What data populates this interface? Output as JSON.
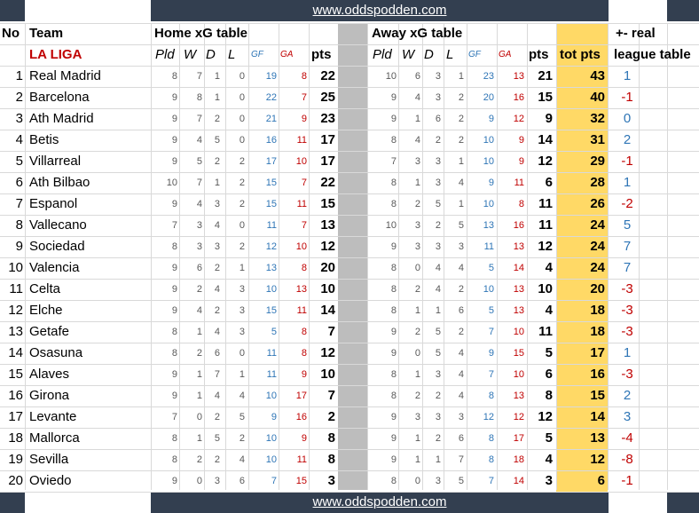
{
  "site_url": "www.oddspodden.com",
  "headers": {
    "no": "No",
    "team": "Team",
    "home": "Home xG table",
    "away": "Away xG table",
    "diff": "+- real",
    "diff2": "league table",
    "league": "LA LIGA",
    "pld": "Pld",
    "w": "W",
    "d": "D",
    "l": "L",
    "gf": "GF",
    "ga": "GA",
    "pts": "pts",
    "tot": "tot pts"
  },
  "colors": {
    "band": "#333f50",
    "tot_highlight": "#ffd966",
    "positive": "#2e75b6",
    "negative": "#c00000"
  },
  "rows": [
    {
      "rank": "1",
      "team": "Real Madrid",
      "h": [
        "8",
        "7",
        "1",
        "0",
        "19",
        "8",
        "22"
      ],
      "a": [
        "10",
        "6",
        "3",
        "1",
        "23",
        "13",
        "21"
      ],
      "tot": "43",
      "diff": "1"
    },
    {
      "rank": "2",
      "team": "Barcelona",
      "h": [
        "9",
        "8",
        "1",
        "0",
        "22",
        "7",
        "25"
      ],
      "a": [
        "9",
        "4",
        "3",
        "2",
        "20",
        "16",
        "15"
      ],
      "tot": "40",
      "diff": "-1"
    },
    {
      "rank": "3",
      "team": "Ath Madrid",
      "h": [
        "9",
        "7",
        "2",
        "0",
        "21",
        "9",
        "23"
      ],
      "a": [
        "9",
        "1",
        "6",
        "2",
        "9",
        "12",
        "9"
      ],
      "tot": "32",
      "diff": "0"
    },
    {
      "rank": "4",
      "team": "Betis",
      "h": [
        "9",
        "4",
        "5",
        "0",
        "16",
        "11",
        "17"
      ],
      "a": [
        "8",
        "4",
        "2",
        "2",
        "10",
        "9",
        "14"
      ],
      "tot": "31",
      "diff": "2"
    },
    {
      "rank": "5",
      "team": "Villarreal",
      "h": [
        "9",
        "5",
        "2",
        "2",
        "17",
        "10",
        "17"
      ],
      "a": [
        "7",
        "3",
        "3",
        "1",
        "10",
        "9",
        "12"
      ],
      "tot": "29",
      "diff": "-1"
    },
    {
      "rank": "6",
      "team": "Ath Bilbao",
      "h": [
        "10",
        "7",
        "1",
        "2",
        "15",
        "7",
        "22"
      ],
      "a": [
        "8",
        "1",
        "3",
        "4",
        "9",
        "11",
        "6"
      ],
      "tot": "28",
      "diff": "1"
    },
    {
      "rank": "7",
      "team": "Espanol",
      "h": [
        "9",
        "4",
        "3",
        "2",
        "15",
        "11",
        "15"
      ],
      "a": [
        "8",
        "2",
        "5",
        "1",
        "10",
        "8",
        "11"
      ],
      "tot": "26",
      "diff": "-2"
    },
    {
      "rank": "8",
      "team": "Vallecano",
      "h": [
        "7",
        "3",
        "4",
        "0",
        "11",
        "7",
        "13"
      ],
      "a": [
        "10",
        "3",
        "2",
        "5",
        "13",
        "16",
        "11"
      ],
      "tot": "24",
      "diff": "5"
    },
    {
      "rank": "9",
      "team": "Sociedad",
      "h": [
        "8",
        "3",
        "3",
        "2",
        "12",
        "10",
        "12"
      ],
      "a": [
        "9",
        "3",
        "3",
        "3",
        "11",
        "13",
        "12"
      ],
      "tot": "24",
      "diff": "7"
    },
    {
      "rank": "10",
      "team": "Valencia",
      "h": [
        "9",
        "6",
        "2",
        "1",
        "13",
        "8",
        "20"
      ],
      "a": [
        "8",
        "0",
        "4",
        "4",
        "5",
        "14",
        "4"
      ],
      "tot": "24",
      "diff": "7"
    },
    {
      "rank": "11",
      "team": "Celta",
      "h": [
        "9",
        "2",
        "4",
        "3",
        "10",
        "13",
        "10"
      ],
      "a": [
        "8",
        "2",
        "4",
        "2",
        "10",
        "13",
        "10"
      ],
      "tot": "20",
      "diff": "-3"
    },
    {
      "rank": "12",
      "team": "Elche",
      "h": [
        "9",
        "4",
        "2",
        "3",
        "15",
        "11",
        "14"
      ],
      "a": [
        "8",
        "1",
        "1",
        "6",
        "5",
        "13",
        "4"
      ],
      "tot": "18",
      "diff": "-3"
    },
    {
      "rank": "13",
      "team": "Getafe",
      "h": [
        "8",
        "1",
        "4",
        "3",
        "5",
        "8",
        "7"
      ],
      "a": [
        "9",
        "2",
        "5",
        "2",
        "7",
        "10",
        "11"
      ],
      "tot": "18",
      "diff": "-3"
    },
    {
      "rank": "14",
      "team": "Osasuna",
      "h": [
        "8",
        "2",
        "6",
        "0",
        "11",
        "8",
        "12"
      ],
      "a": [
        "9",
        "0",
        "5",
        "4",
        "9",
        "15",
        "5"
      ],
      "tot": "17",
      "diff": "1"
    },
    {
      "rank": "15",
      "team": "Alaves",
      "h": [
        "9",
        "1",
        "7",
        "1",
        "11",
        "9",
        "10"
      ],
      "a": [
        "8",
        "1",
        "3",
        "4",
        "7",
        "10",
        "6"
      ],
      "tot": "16",
      "diff": "-3"
    },
    {
      "rank": "16",
      "team": "Girona",
      "h": [
        "9",
        "1",
        "4",
        "4",
        "10",
        "17",
        "7"
      ],
      "a": [
        "8",
        "2",
        "2",
        "4",
        "8",
        "13",
        "8"
      ],
      "tot": "15",
      "diff": "2"
    },
    {
      "rank": "17",
      "team": "Levante",
      "h": [
        "7",
        "0",
        "2",
        "5",
        "9",
        "16",
        "2"
      ],
      "a": [
        "9",
        "3",
        "3",
        "3",
        "12",
        "12",
        "12"
      ],
      "tot": "14",
      "diff": "3"
    },
    {
      "rank": "18",
      "team": "Mallorca",
      "h": [
        "8",
        "1",
        "5",
        "2",
        "10",
        "9",
        "8"
      ],
      "a": [
        "9",
        "1",
        "2",
        "6",
        "8",
        "17",
        "5"
      ],
      "tot": "13",
      "diff": "-4"
    },
    {
      "rank": "19",
      "team": "Sevilla",
      "h": [
        "8",
        "2",
        "2",
        "4",
        "10",
        "11",
        "8"
      ],
      "a": [
        "9",
        "1",
        "1",
        "7",
        "8",
        "18",
        "4"
      ],
      "tot": "12",
      "diff": "-8"
    },
    {
      "rank": "20",
      "team": "Oviedo",
      "h": [
        "9",
        "0",
        "3",
        "6",
        "7",
        "15",
        "3"
      ],
      "a": [
        "8",
        "0",
        "3",
        "5",
        "7",
        "14",
        "3"
      ],
      "tot": "6",
      "diff": "-1"
    }
  ]
}
